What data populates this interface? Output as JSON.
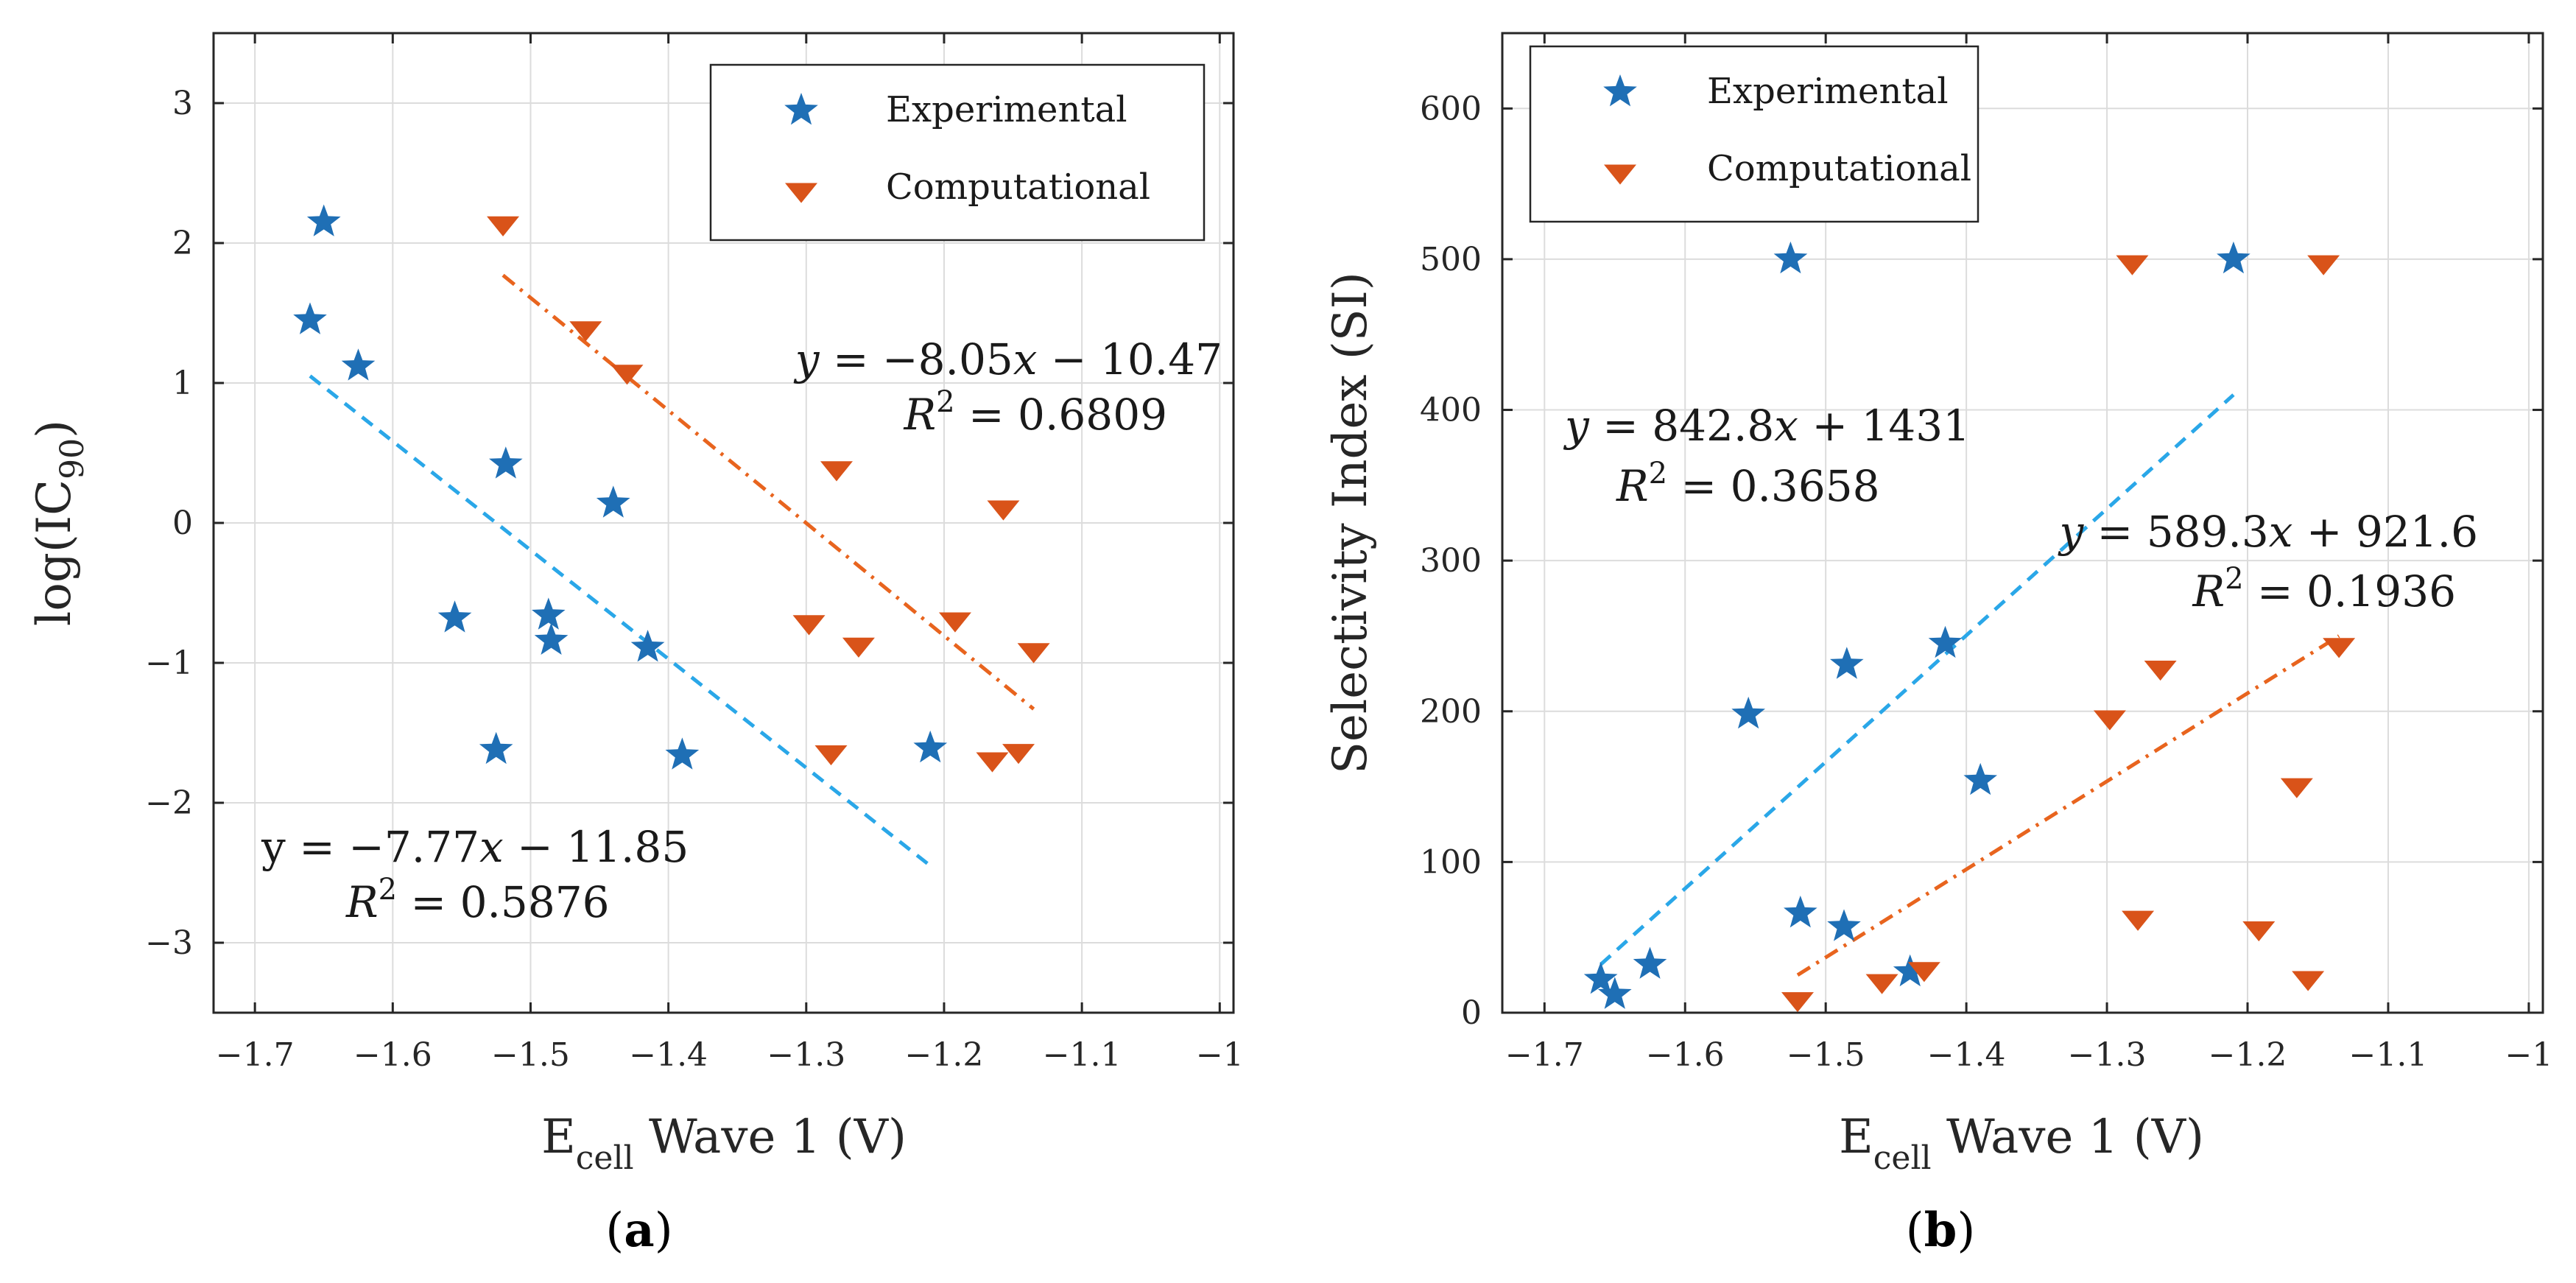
{
  "chart_data": [
    {
      "type": "scatter",
      "panel_label": "(a)",
      "panel_letter": "a",
      "ylabel_main": "log(IC",
      "ylabel_sub": "90",
      "ylabel_end": ")",
      "xlabel_main": "E",
      "xlabel_sub": "cell",
      "xlabel_rest": " Wave 1 (V)",
      "xlim": [
        -1.73,
        -0.99
      ],
      "ylim": [
        -3.5,
        3.5
      ],
      "xticks": [
        -1.7,
        -1.6,
        -1.5,
        -1.4,
        -1.3,
        -1.2,
        -1.1,
        -1.0
      ],
      "xtick_labels": [
        "−1.7",
        "−1.6",
        "−1.5",
        "−1.4",
        "−1.3",
        "−1.2",
        "−1.1",
        "−1"
      ],
      "yticks": [
        -3,
        -2,
        -1,
        0,
        1,
        2,
        3
      ],
      "ytick_labels": [
        "−3",
        "−2",
        "−1",
        "0",
        "1",
        "2",
        "3"
      ],
      "grid": true,
      "legend_position": "top-right",
      "series": [
        {
          "name": "Experimental",
          "marker": "star",
          "color": "#1f6fb5",
          "points": [
            [
              -1.66,
              1.45
            ],
            [
              -1.65,
              2.15
            ],
            [
              -1.625,
              1.12
            ],
            [
              -1.555,
              -0.68
            ],
            [
              -1.525,
              -1.62
            ],
            [
              -1.518,
              0.42
            ],
            [
              -1.487,
              -0.66
            ],
            [
              -1.485,
              -0.84
            ],
            [
              -1.44,
              0.14
            ],
            [
              -1.415,
              -0.89
            ],
            [
              -1.39,
              -1.66
            ],
            [
              -1.21,
              -1.61
            ]
          ]
        },
        {
          "name": "Computational",
          "marker": "triangle-down",
          "color": "#d95319",
          "points": [
            [
              -1.52,
              2.13
            ],
            [
              -1.46,
              1.38
            ],
            [
              -1.43,
              1.07
            ],
            [
              -1.298,
              -0.72
            ],
            [
              -1.282,
              -1.65
            ],
            [
              -1.278,
              0.38
            ],
            [
              -1.262,
              -0.88
            ],
            [
              -1.192,
              -0.7
            ],
            [
              -1.165,
              -1.7
            ],
            [
              -1.157,
              0.1
            ],
            [
              -1.146,
              -1.64
            ],
            [
              -1.135,
              -0.92
            ]
          ]
        }
      ],
      "fits": [
        {
          "series": "Experimental",
          "color": "#2aa7e8",
          "style": "dashed",
          "x": [
            -1.66,
            -1.21
          ],
          "y": [
            1.05,
            -2.45
          ]
        },
        {
          "series": "Computational",
          "color": "#e8641e",
          "style": "dashdot",
          "x": [
            -1.52,
            -1.135
          ],
          "y": [
            1.77,
            -1.33
          ]
        }
      ],
      "annotations": [
        {
          "line1_lead": "y",
          "line1_rest": " = −8.05",
          "line1_var": "x",
          "line1_end": " − 10.47",
          "line2_var": "R",
          "line2_sup": "2",
          "line2_rest": " = 0.6809"
        },
        {
          "line1_lead": "y",
          "line1_rest": " = −7.77",
          "line1_var": "x",
          "line1_end": " − 11.85",
          "line2_var": "R",
          "line2_sup": "2",
          "line2_rest": " = 0.5876"
        }
      ]
    },
    {
      "type": "scatter",
      "panel_label": "(b)",
      "panel_letter": "b",
      "ylabel": "Selectivity Index (SI)",
      "xlabel_main": "E",
      "xlabel_sub": "cell",
      "xlabel_rest": " Wave 1 (V)",
      "xlim": [
        -1.73,
        -0.99
      ],
      "ylim": [
        0,
        650
      ],
      "xticks": [
        -1.7,
        -1.6,
        -1.5,
        -1.4,
        -1.3,
        -1.2,
        -1.1,
        -1.0
      ],
      "xtick_labels": [
        "−1.7",
        "−1.6",
        "−1.5",
        "−1.4",
        "−1.3",
        "−1.2",
        "−1.1",
        "−1"
      ],
      "yticks": [
        0,
        100,
        200,
        300,
        400,
        500,
        600
      ],
      "ytick_labels": [
        "0",
        "100",
        "200",
        "300",
        "400",
        "500",
        "600"
      ],
      "grid": true,
      "legend_position": "top-left",
      "series": [
        {
          "name": "Experimental",
          "marker": "star",
          "color": "#1f6fb5",
          "points": [
            [
              -1.66,
              22
            ],
            [
              -1.65,
              12
            ],
            [
              -1.625,
              32
            ],
            [
              -1.555,
              198
            ],
            [
              -1.525,
              500
            ],
            [
              -1.518,
              66
            ],
            [
              -1.487,
              57
            ],
            [
              -1.485,
              231
            ],
            [
              -1.44,
              27
            ],
            [
              -1.415,
              245
            ],
            [
              -1.39,
              154
            ],
            [
              -1.21,
              500
            ]
          ]
        },
        {
          "name": "Computational",
          "marker": "triangle-down",
          "color": "#d95319",
          "points": [
            [
              -1.52,
              8
            ],
            [
              -1.46,
              20
            ],
            [
              -1.43,
              28
            ],
            [
              -1.298,
              195
            ],
            [
              -1.282,
              497
            ],
            [
              -1.278,
              62
            ],
            [
              -1.262,
              228
            ],
            [
              -1.192,
              55
            ],
            [
              -1.165,
              150
            ],
            [
              -1.157,
              22
            ],
            [
              -1.146,
              497
            ],
            [
              -1.135,
              243
            ]
          ]
        }
      ],
      "fits": [
        {
          "series": "Experimental",
          "color": "#2aa7e8",
          "style": "dashed",
          "x": [
            -1.66,
            -1.21
          ],
          "y": [
            32,
            410
          ]
        },
        {
          "series": "Computational",
          "color": "#e8641e",
          "style": "dashdot",
          "x": [
            -1.52,
            -1.135
          ],
          "y": [
            25,
            250
          ]
        }
      ],
      "annotations": [
        {
          "line1_lead": "y",
          "line1_rest": " = 842.8",
          "line1_var": "x",
          "line1_end": " + 1431",
          "line2_var": "R",
          "line2_sup": "2",
          "line2_rest": " = 0.3658"
        },
        {
          "line1_lead": "y",
          "line1_rest": " = 589.3",
          "line1_var": "x",
          "line1_end": " + 921.6",
          "line2_var": "R",
          "line2_sup": "2",
          "line2_rest": " = 0.1936"
        }
      ]
    }
  ]
}
